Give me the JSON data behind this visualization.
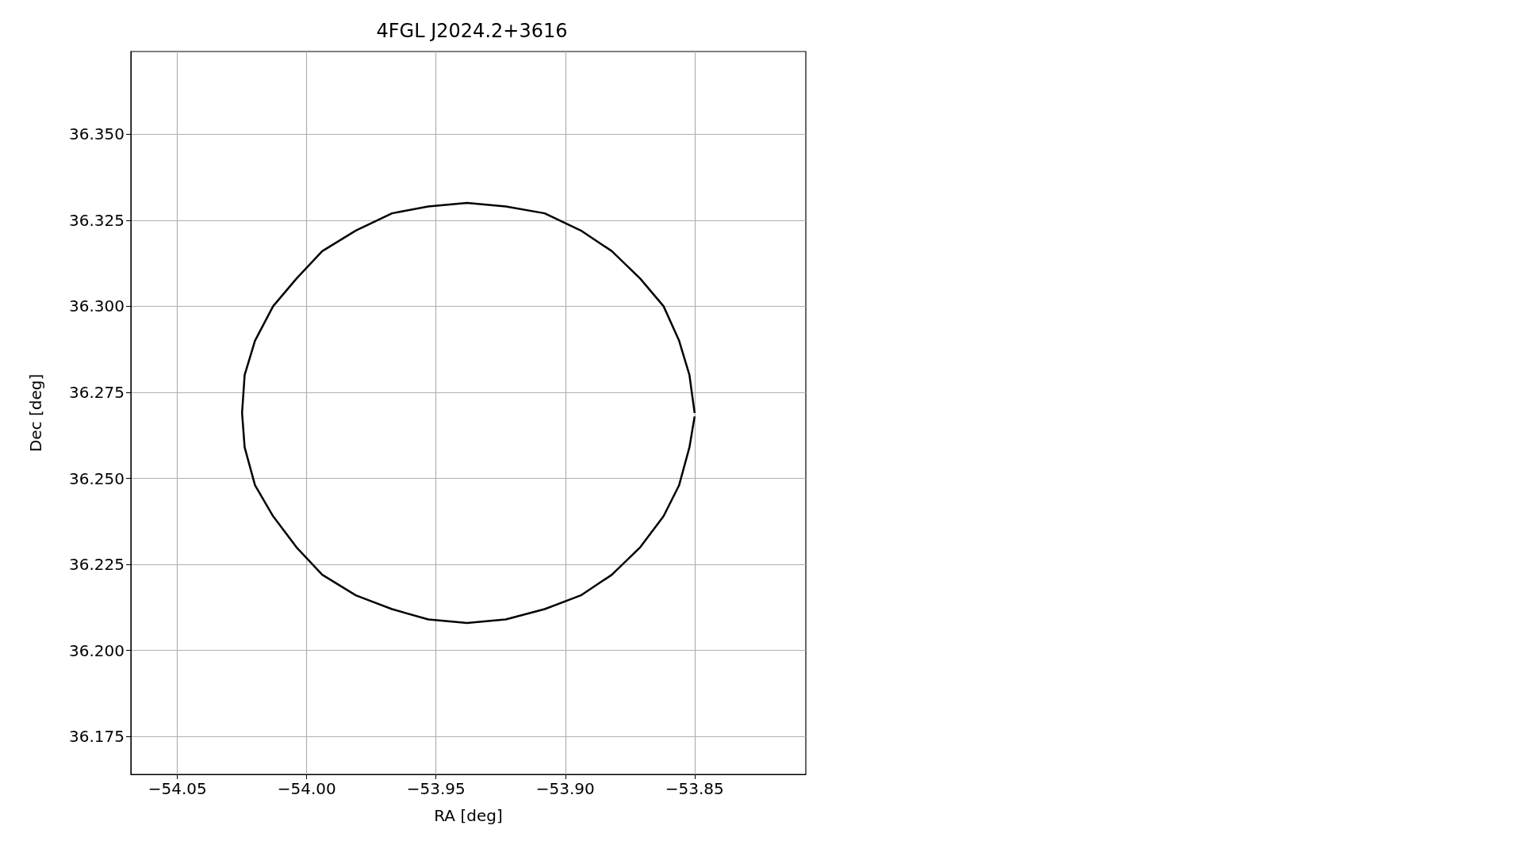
{
  "chart_data": {
    "type": "line",
    "title": "4FGL J2024.2+3616",
    "xlabel": "RA [deg]",
    "ylabel": "Dec [deg]",
    "series": [
      {
        "color": "#000000",
        "x": [
          -53.85,
          -53.852,
          -53.856,
          -53.862,
          -53.871,
          -53.882,
          -53.894,
          -53.908,
          -53.923,
          -53.938,
          -53.953,
          -53.967,
          -53.981,
          -53.994,
          -54.004,
          -54.013,
          -54.02,
          -54.024,
          -54.025,
          -54.024,
          -54.02,
          -54.013,
          -54.004,
          -53.994,
          -53.981,
          -53.967,
          -53.953,
          -53.938,
          -53.923,
          -53.908,
          -53.894,
          -53.882,
          -53.871,
          -53.862,
          -53.856,
          -53.852,
          -53.85
        ],
        "values": [
          36.269,
          36.28,
          36.29,
          36.3,
          36.308,
          36.316,
          36.322,
          36.327,
          36.329,
          36.33,
          36.329,
          36.327,
          36.322,
          36.316,
          36.308,
          36.3,
          36.29,
          36.28,
          36.269,
          36.259,
          36.248,
          36.239,
          36.23,
          36.222,
          36.216,
          36.212,
          36.209,
          36.208,
          36.209,
          36.212,
          36.216,
          36.222,
          36.23,
          36.239,
          36.248,
          36.259,
          36.268
        ]
      }
    ],
    "xlim": [
      -54.068,
      -53.807
    ],
    "ylim": [
      36.164,
      36.374
    ],
    "xticks": [
      {
        "value": -54.05,
        "label": "−54.05"
      },
      {
        "value": -54.0,
        "label": "−54.00"
      },
      {
        "value": -53.95,
        "label": "−53.95"
      },
      {
        "value": -53.9,
        "label": "−53.90"
      },
      {
        "value": -53.85,
        "label": "−53.85"
      }
    ],
    "yticks": [
      {
        "value": 36.175,
        "label": "36.175"
      },
      {
        "value": 36.2,
        "label": "36.200"
      },
      {
        "value": 36.225,
        "label": "36.225"
      },
      {
        "value": 36.25,
        "label": "36.250"
      },
      {
        "value": 36.275,
        "label": "36.275"
      },
      {
        "value": 36.3,
        "label": "36.300"
      },
      {
        "value": 36.325,
        "label": "36.325"
      },
      {
        "value": 36.35,
        "label": "36.350"
      }
    ],
    "grid": true,
    "marker": "none",
    "line_style": "solid"
  }
}
